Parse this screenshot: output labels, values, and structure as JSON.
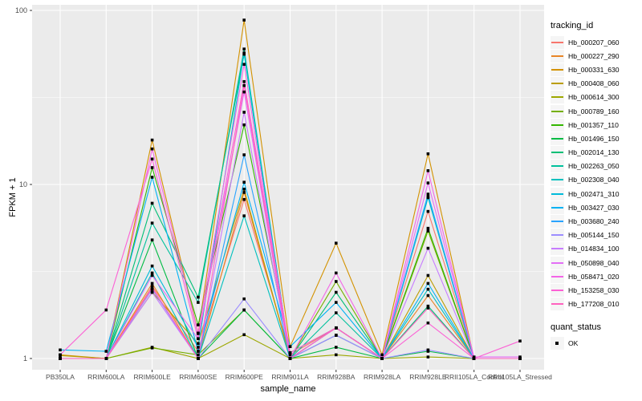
{
  "chart_data": {
    "type": "line",
    "title": "",
    "xlabel": "sample_name",
    "ylabel": "FPKM + 1",
    "yscale": "log10",
    "ytick_labels": [
      "1",
      "10",
      "100"
    ],
    "yticks": [
      1,
      10,
      100
    ],
    "yminor": [
      3.1623,
      31.623
    ],
    "ylim_log": [
      -0.065,
      2.03
    ],
    "grid": true,
    "panel_bg": "#EBEBEB",
    "grid_color": "#FFFFFF",
    "tick_color": "#333333",
    "tick_label_color": "#4D4D4D",
    "point_color": "#000000",
    "legend_position": "right",
    "categories": [
      "PB350LA",
      "RRIM600LA",
      "RRIM600LE",
      "RRIM600SE",
      "RRIM600PE",
      "RRIM901LA",
      "RRIM928BA",
      "RRIM928LA",
      "RRIM928LE",
      "RRII105LA_Control",
      "RRII105LA_Stressed"
    ],
    "series": [
      {
        "name": "Hb_000207_060",
        "color": "#F8766D",
        "values": [
          1.0,
          1.0,
          2.6,
          1.1,
          8.2,
          1.05,
          1.5,
          1.0,
          7.0,
          1.0,
          1.0
        ]
      },
      {
        "name": "Hb_000227_290",
        "color": "#E88526",
        "values": [
          1.0,
          1.0,
          2.7,
          1.0,
          9.0,
          1.0,
          1.5,
          1.0,
          2.3,
          1.0,
          1.0
        ]
      },
      {
        "name": "Hb_000331_630",
        "color": "#D39200",
        "values": [
          1.05,
          1.0,
          18.0,
          1.4,
          88.0,
          1.17,
          4.6,
          1.05,
          15.0,
          1.0,
          1.0
        ]
      },
      {
        "name": "Hb_000408_060",
        "color": "#BB9D00",
        "values": [
          1.04,
          1.0,
          2.4,
          1.22,
          9.4,
          1.0,
          1.36,
          1.0,
          3.0,
          1.0,
          1.0
        ]
      },
      {
        "name": "Hb_000614_300",
        "color": "#9DA700",
        "values": [
          1.0,
          1.0,
          1.16,
          1.0,
          1.37,
          1.0,
          1.05,
          1.0,
          1.02,
          1.0,
          1.0
        ]
      },
      {
        "name": "Hb_000789_160",
        "color": "#75AF00",
        "values": [
          1.0,
          1.0,
          1.15,
          1.05,
          1.9,
          1.0,
          2.77,
          1.0,
          5.4,
          1.0,
          1.0
        ]
      },
      {
        "name": "Hb_001357_110",
        "color": "#33B600",
        "values": [
          1.0,
          1.0,
          12.5,
          1.56,
          22.0,
          1.08,
          1.5,
          1.0,
          5.6,
          1.0,
          1.0
        ]
      },
      {
        "name": "Hb_001496_150",
        "color": "#00BB44",
        "values": [
          1.0,
          1.0,
          4.8,
          1.0,
          1.9,
          1.0,
          1.16,
          1.0,
          1.1,
          1.0,
          1.0
        ]
      },
      {
        "name": "Hb_002014_130",
        "color": "#00BF76",
        "values": [
          1.0,
          1.0,
          7.8,
          2.25,
          56.0,
          1.0,
          2.4,
          1.0,
          2.0,
          1.0,
          1.0
        ]
      },
      {
        "name": "Hb_002263_050",
        "color": "#00C19C",
        "values": [
          1.0,
          1.0,
          6.0,
          2.1,
          60.0,
          1.0,
          1.83,
          1.0,
          8.4,
          1.0,
          1.0
        ]
      },
      {
        "name": "Hb_002308_040",
        "color": "#00C0BE",
        "values": [
          1.0,
          1.0,
          3.1,
          1.0,
          6.6,
          1.0,
          1.5,
          1.0,
          2.5,
          1.0,
          1.0
        ]
      },
      {
        "name": "Hb_002471_310",
        "color": "#00BBDA",
        "values": [
          1.0,
          1.0,
          3.4,
          1.16,
          57.0,
          1.0,
          1.5,
          1.0,
          8.5,
          1.0,
          1.0
        ]
      },
      {
        "name": "Hb_003427_030",
        "color": "#00B2F3",
        "values": [
          1.12,
          1.1,
          11.0,
          1.1,
          10.3,
          1.17,
          2.1,
          1.0,
          2.7,
          1.0,
          1.0
        ]
      },
      {
        "name": "Hb_003680_240",
        "color": "#29A3FF",
        "values": [
          1.0,
          1.0,
          2.5,
          1.0,
          14.8,
          1.0,
          1.36,
          1.0,
          8.8,
          1.0,
          1.0
        ]
      },
      {
        "name": "Hb_005144_150",
        "color": "#9C8DFF",
        "values": [
          1.0,
          1.0,
          2.5,
          1.0,
          2.2,
          1.0,
          1.36,
          1.0,
          1.12,
          1.0,
          1.0
        ]
      },
      {
        "name": "Hb_014834_100",
        "color": "#C77CFF",
        "values": [
          1.0,
          1.0,
          2.4,
          1.0,
          26.0,
          1.0,
          1.5,
          1.0,
          4.3,
          1.0,
          1.0
        ]
      },
      {
        "name": "Hb_050898_040",
        "color": "#E36EF6",
        "values": [
          1.0,
          1.0,
          3.0,
          1.3,
          34.0,
          1.0,
          1.5,
          1.0,
          10.2,
          1.02,
          1.02
        ]
      },
      {
        "name": "Hb_058471_020",
        "color": "#F365E7",
        "values": [
          1.0,
          1.0,
          16.0,
          1.39,
          49.0,
          1.0,
          3.1,
          1.0,
          12.0,
          1.0,
          1.0
        ]
      },
      {
        "name": "Hb_153258_030",
        "color": "#FC61D5",
        "values": [
          1.05,
          1.9,
          14.0,
          1.3,
          39.0,
          1.08,
          1.5,
          1.0,
          1.6,
          1.0,
          1.26
        ]
      },
      {
        "name": "Hb_177208_010",
        "color": "#FF62BF",
        "values": [
          1.0,
          1.0,
          2.55,
          1.0,
          37.0,
          1.0,
          1.5,
          1.0,
          1.95,
          1.0,
          1.0
        ]
      }
    ],
    "legend": {
      "tracking_title": "tracking_id",
      "quant_title": "quant_status",
      "quant_value": "OK"
    }
  }
}
